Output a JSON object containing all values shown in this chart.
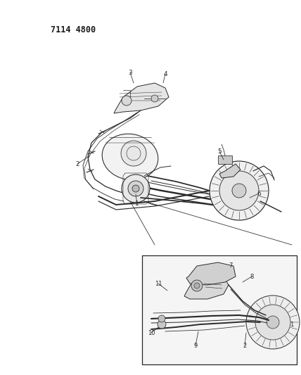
{
  "background_color": "#ffffff",
  "part_number_text": "7114 4800",
  "part_number_fontsize": 8.5,
  "part_number_fontweight": "bold",
  "fig_width": 4.28,
  "fig_height": 5.33,
  "dpi": 100,
  "line_color": "#2a2a2a",
  "label_fontsize": 6.5,
  "gray_fill": "#c8c8c8",
  "light_gray": "#e0e0e0",
  "inset_fill": "#f0f0f0"
}
